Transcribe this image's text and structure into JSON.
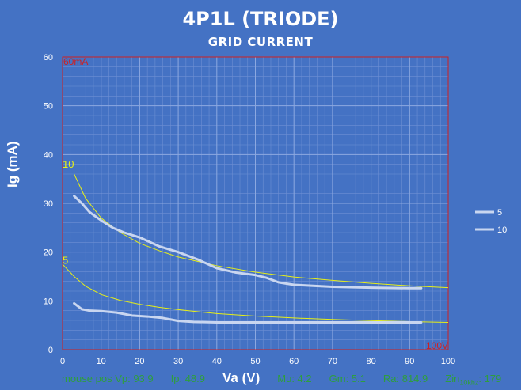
{
  "chart_data": {
    "type": "line",
    "title": "4P1L (TRIODE)",
    "subtitle": "GRID CURRENT",
    "xlabel": "Va (V)",
    "ylabel": "Ig (mA)",
    "xlim": [
      0,
      100
    ],
    "ylim": [
      0,
      60
    ],
    "x_ticks": [
      "0",
      "10",
      "20",
      "30",
      "40",
      "50",
      "60",
      "70",
      "80",
      "90",
      "100"
    ],
    "y_ticks": [
      "0",
      "10",
      "20",
      "30",
      "40",
      "50",
      "60"
    ],
    "grid": true,
    "legend_position": "right",
    "corner_labels": {
      "top_left": "60mA",
      "bottom_right": "100V"
    },
    "curve_labels": [
      "10",
      "5"
    ],
    "series": [
      {
        "name": "5",
        "color": "#c9d6f0",
        "x": [
          3,
          5,
          7,
          10,
          14,
          18,
          22,
          26,
          30,
          34,
          40,
          50,
          60,
          70,
          80,
          90,
          93
        ],
        "y": [
          9.5,
          8.3,
          8.0,
          7.9,
          7.6,
          7.0,
          6.8,
          6.5,
          5.9,
          5.7,
          5.6,
          5.6,
          5.6,
          5.6,
          5.6,
          5.6,
          5.6
        ]
      },
      {
        "name": "10",
        "color": "#c9d6f0",
        "x": [
          3,
          5,
          7,
          10,
          13,
          16,
          20,
          25,
          30,
          35,
          40,
          45,
          50,
          53,
          56,
          60,
          65,
          70,
          80,
          90,
          93
        ],
        "y": [
          31.5,
          30,
          28.2,
          26.5,
          25,
          24,
          23,
          21.2,
          20,
          18.5,
          16.7,
          15.8,
          15.3,
          14.7,
          13.8,
          13.3,
          13.1,
          12.9,
          12.7,
          12.6,
          12.6
        ]
      }
    ],
    "fit_series": [
      {
        "name": "10",
        "color": "#e8f016",
        "x": [
          3,
          6,
          10,
          15,
          20,
          25,
          30,
          40,
          50,
          60,
          70,
          80,
          90,
          100
        ],
        "y": [
          36,
          31,
          27,
          24,
          21.8,
          20.3,
          19,
          17.2,
          15.9,
          14.9,
          14.2,
          13.6,
          13.1,
          12.7
        ]
      },
      {
        "name": "5",
        "color": "#e8f016",
        "x": [
          0,
          3,
          6,
          10,
          15,
          20,
          25,
          30,
          40,
          50,
          60,
          70,
          80,
          90,
          100
        ],
        "y": [
          17.5,
          15,
          13,
          11.3,
          10.1,
          9.3,
          8.7,
          8.2,
          7.4,
          6.9,
          6.5,
          6.2,
          5.95,
          5.75,
          5.6
        ]
      }
    ]
  },
  "readout": {
    "vp": "mouse pos Vp: 93.9",
    "ip": "Ip: 48.9",
    "va": "Va (V)",
    "mu": "Mu: 4.2",
    "gm": "Gm: 5.1",
    "ra": "Ra: 814.9",
    "zin": "Zin",
    "zin_sub": "10khz",
    "zin_val": ": 179"
  }
}
